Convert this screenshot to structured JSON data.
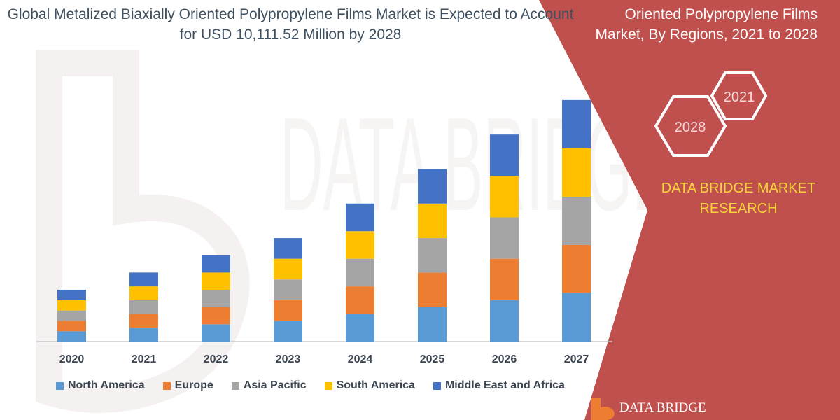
{
  "header": {
    "title": "Global Metalized Biaxially Oriented Polypropylene Films Market is Expected to Account for USD 10,111.52 Million by 2028",
    "side_title": "Oriented Polypropylene Films Market, By Regions, 2021 to 2028"
  },
  "badges": [
    "2021",
    "2028"
  ],
  "brand": {
    "name": "DATA BRIDGE MARKET RESEARCH",
    "logo_text": "DATA BRIDGE",
    "watermark_text": "DATA BRIDGE"
  },
  "colors": {
    "background": "#ffffff",
    "panel": "#c0504d",
    "badge_stroke": "#ffffff",
    "brand_text": "#f7d43a",
    "axis": "#c8c8c8",
    "watermark": "#e6dfdf"
  },
  "chart_data": {
    "type": "bar",
    "stacked": true,
    "categories": [
      "2020",
      "2021",
      "2022",
      "2023",
      "2024",
      "2025",
      "2026",
      "2027"
    ],
    "series": [
      {
        "name": "North America",
        "color": "#5b9bd5",
        "values": [
          3,
          4,
          5,
          6,
          8,
          10,
          12,
          14
        ]
      },
      {
        "name": "Europe",
        "color": "#ed7d31",
        "values": [
          3,
          4,
          5,
          6,
          8,
          10,
          12,
          14
        ]
      },
      {
        "name": "Asia Pacific",
        "color": "#a5a5a5",
        "values": [
          3,
          4,
          5,
          6,
          8,
          10,
          12,
          14
        ]
      },
      {
        "name": "South America",
        "color": "#ffc000",
        "values": [
          3,
          4,
          5,
          6,
          8,
          10,
          12,
          14
        ]
      },
      {
        "name": "Middle East and Africa",
        "color": "#4472c4",
        "values": [
          3,
          4,
          5,
          6,
          8,
          10,
          12,
          14
        ]
      }
    ],
    "ylim": [
      0,
      72
    ],
    "grid": false,
    "legend": "bottom"
  }
}
